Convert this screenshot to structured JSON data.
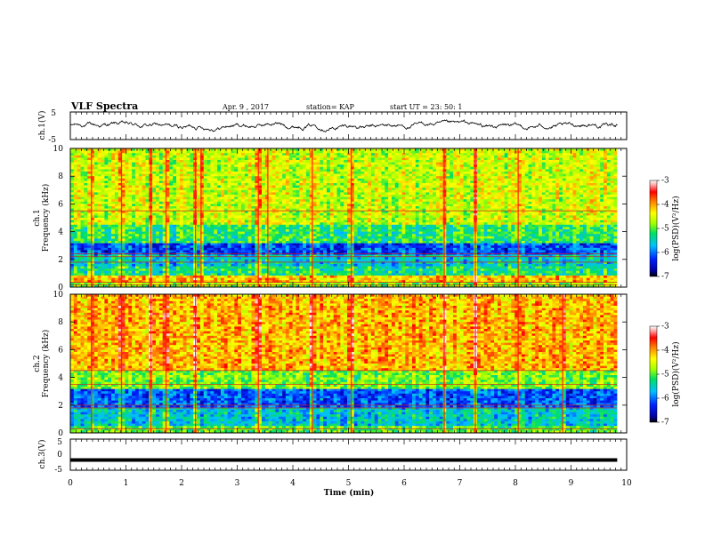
{
  "header": {
    "title": "VLF Spectra",
    "date": "Apr. 9 , 2017",
    "station": "station= KAP",
    "start": "start UT = 23: 50: 1"
  },
  "chart_data": [
    {
      "id": "ch1-waveform",
      "type": "line",
      "ylabel": "ch.1(V)",
      "ylim": [
        -5,
        5
      ],
      "yticks": [
        "5",
        "-5"
      ],
      "xlim": [
        0,
        10
      ],
      "x_end": 9.83,
      "baseline": 0.0,
      "amplitude": 1.6
    },
    {
      "id": "ch1-spectrogram",
      "type": "heatmap",
      "ylabel": "ch.1\nFrequency (kHz)",
      "ylim": [
        0,
        10
      ],
      "yticks": [
        "0",
        "2",
        "4",
        "6",
        "8",
        "10"
      ],
      "xlim": [
        0,
        10
      ],
      "x_end": 9.83,
      "colorbar": {
        "label": "log(PSD)(V²/Hz)",
        "range": [
          -7,
          -3
        ],
        "ticks": [
          "-3",
          "-4",
          "-5",
          "-6",
          "-7"
        ]
      },
      "bands": [
        {
          "f": [
            0.0,
            0.3
          ],
          "level": -4.8
        },
        {
          "f": [
            0.3,
            0.8
          ],
          "level": -4.2
        },
        {
          "f": [
            0.8,
            1.5
          ],
          "level": -5.3
        },
        {
          "f": [
            1.5,
            2.4
          ],
          "level": -5.6
        },
        {
          "f": [
            2.4,
            3.2
          ],
          "level": -6.2
        },
        {
          "f": [
            3.2,
            4.5
          ],
          "level": -5.2
        },
        {
          "f": [
            4.5,
            10.0
          ],
          "level": -4.6
        }
      ],
      "lines_khz": [
        0.15,
        0.35,
        1.8,
        2.2,
        2.4,
        5.5
      ],
      "bursts_min": [
        0.38,
        0.92,
        1.45,
        1.72,
        2.25,
        2.35,
        3.38,
        3.55,
        4.35,
        5.05,
        6.72,
        7.28,
        8.05
      ]
    },
    {
      "id": "ch2-spectrogram",
      "type": "heatmap",
      "ylabel": "ch.2\nFrequency (kHz)",
      "ylim": [
        0,
        10
      ],
      "yticks": [
        "0",
        "2",
        "4",
        "6",
        "8",
        "10"
      ],
      "xlim": [
        0,
        10
      ],
      "x_end": 9.83,
      "colorbar": {
        "label": "log(PSD)(V²/Hz)",
        "range": [
          -7,
          -3
        ],
        "ticks": [
          "-3",
          "-4",
          "-5",
          "-6",
          "-7"
        ]
      },
      "bands": [
        {
          "f": [
            0.0,
            0.5
          ],
          "level": -5.0
        },
        {
          "f": [
            0.5,
            1.8
          ],
          "level": -5.6
        },
        {
          "f": [
            1.8,
            3.2
          ],
          "level": -6.1
        },
        {
          "f": [
            3.2,
            4.5
          ],
          "level": -4.9
        },
        {
          "f": [
            4.5,
            10.0
          ],
          "level": -4.1
        }
      ],
      "lines_khz": [
        0.3,
        1.8,
        2.0,
        3.5,
        4.5
      ],
      "bursts_min": [
        0.38,
        0.92,
        1.45,
        1.72,
        2.25,
        3.38,
        4.35,
        5.05,
        6.72,
        7.28,
        8.05,
        8.85
      ]
    },
    {
      "id": "ch3-waveform",
      "type": "line",
      "ylabel": "ch.3(V)",
      "ylim": [
        -5,
        5
      ],
      "yticks": [
        "5",
        "0",
        "-5"
      ],
      "xlim": [
        0,
        10
      ],
      "x_end": 9.83,
      "baseline": -1.7,
      "amplitude": 0.0,
      "xlabel": "Time (min)",
      "xticks": [
        "0",
        "1",
        "2",
        "3",
        "4",
        "5",
        "6",
        "7",
        "8",
        "9",
        "10"
      ]
    }
  ]
}
